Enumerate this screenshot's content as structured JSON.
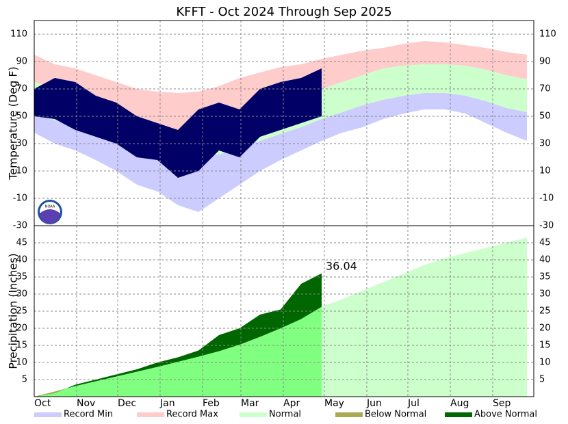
{
  "chart_data": [
    {
      "type": "band",
      "title": "KFFT - Oct 2024 Through Sep 2025",
      "y_label": "Temperature (Deg F)",
      "logo_text": "NOAA",
      "x": [
        0,
        15,
        30,
        45,
        60,
        75,
        90,
        105,
        120,
        135,
        150,
        165,
        180,
        195,
        210,
        225,
        240,
        255,
        270,
        285,
        300,
        315,
        330,
        345,
        360
      ],
      "xlim": [
        0,
        365
      ],
      "xticks": [
        0,
        31,
        61,
        92,
        123,
        151,
        182,
        212,
        243,
        273,
        304,
        335
      ],
      "ylim": [
        -30,
        120
      ],
      "yticks": [
        -30,
        -10,
        10,
        30,
        50,
        70,
        90,
        110
      ],
      "grid": true,
      "series": [
        {
          "name": "Record Max",
          "color": "#ffcccc",
          "values": [
            95,
            88,
            85,
            80,
            75,
            70,
            68,
            67,
            68,
            72,
            78,
            82,
            86,
            88,
            92,
            95,
            98,
            100,
            103,
            105,
            104,
            102,
            100,
            97,
            95
          ]
        },
        {
          "name": "Normal",
          "color": "#ccffcc",
          "high": [
            75,
            70,
            65,
            57,
            50,
            42,
            37,
            35,
            35,
            38,
            45,
            50,
            57,
            63,
            70,
            75,
            80,
            85,
            87,
            88,
            88,
            87,
            84,
            80,
            77
          ],
          "low": [
            52,
            47,
            42,
            36,
            32,
            27,
            23,
            21,
            20,
            22,
            27,
            32,
            37,
            42,
            48,
            53,
            58,
            62,
            65,
            67,
            67,
            65,
            61,
            56,
            53
          ]
        },
        {
          "name": "Record Min",
          "color": "#ccccff",
          "values": [
            38,
            30,
            25,
            18,
            10,
            0,
            -5,
            -15,
            -20,
            -10,
            0,
            10,
            18,
            25,
            32,
            38,
            42,
            48,
            52,
            55,
            55,
            52,
            45,
            38,
            32
          ]
        },
        {
          "color": "#000066",
          "high": [
            70,
            78,
            75,
            65,
            60,
            50,
            45,
            40,
            55,
            60,
            55,
            70,
            75,
            78,
            85,
            null,
            null,
            null,
            null,
            null,
            null,
            null,
            null,
            null,
            null
          ],
          "low": [
            50,
            48,
            40,
            35,
            30,
            20,
            18,
            5,
            10,
            25,
            20,
            35,
            40,
            45,
            50,
            null,
            null,
            null,
            null,
            null,
            null,
            null,
            null,
            null,
            null
          ]
        }
      ]
    },
    {
      "type": "cumulative",
      "y_label": "Precipitation (Inches)",
      "x": [
        0,
        15,
        30,
        45,
        60,
        75,
        90,
        105,
        120,
        135,
        150,
        165,
        180,
        195,
        210,
        225,
        240,
        255,
        270,
        285,
        300,
        315,
        330,
        345,
        360
      ],
      "xlim": [
        0,
        365
      ],
      "xticks": [
        {
          "value": 0,
          "label": "Oct"
        },
        {
          "value": 31,
          "label": "Nov"
        },
        {
          "value": 61,
          "label": "Dec"
        },
        {
          "value": 92,
          "label": "Jan"
        },
        {
          "value": 123,
          "label": "Feb"
        },
        {
          "value": 151,
          "label": "Mar"
        },
        {
          "value": 182,
          "label": "Apr"
        },
        {
          "value": 212,
          "label": "May"
        },
        {
          "value": 243,
          "label": "Jun"
        },
        {
          "value": 273,
          "label": "Jul"
        },
        {
          "value": 304,
          "label": "Aug"
        },
        {
          "value": 335,
          "label": "Sep"
        }
      ],
      "ylim": [
        0,
        50
      ],
      "yticks": [
        5,
        10,
        15,
        20,
        25,
        30,
        35,
        40,
        45
      ],
      "grid": true,
      "series": [
        {
          "name": "Normal",
          "color": "#ccffcc",
          "observed_period_color": "#80ff80",
          "values": [
            0,
            1.5,
            3.1,
            4.5,
            5.9,
            7.3,
            8.7,
            10.2,
            11.7,
            13.3,
            15.2,
            17.5,
            20,
            22.7,
            26.3,
            28.5,
            31,
            33.5,
            36,
            38.5,
            40.5,
            42,
            43.5,
            45,
            46.5
          ]
        },
        {
          "values": [
            0,
            1,
            3.5,
            5,
            6.5,
            8,
            10,
            11.5,
            13.5,
            18,
            20,
            24,
            25.5,
            33,
            36.04,
            null,
            null,
            null,
            null,
            null,
            null,
            null,
            null,
            null,
            null
          ]
        }
      ],
      "below_normal": {
        "name": "Below Normal",
        "color": "#aaaa55"
      },
      "above_normal": {
        "name": "Above Normal",
        "color": "#006600"
      },
      "annotation": "36.04"
    }
  ]
}
